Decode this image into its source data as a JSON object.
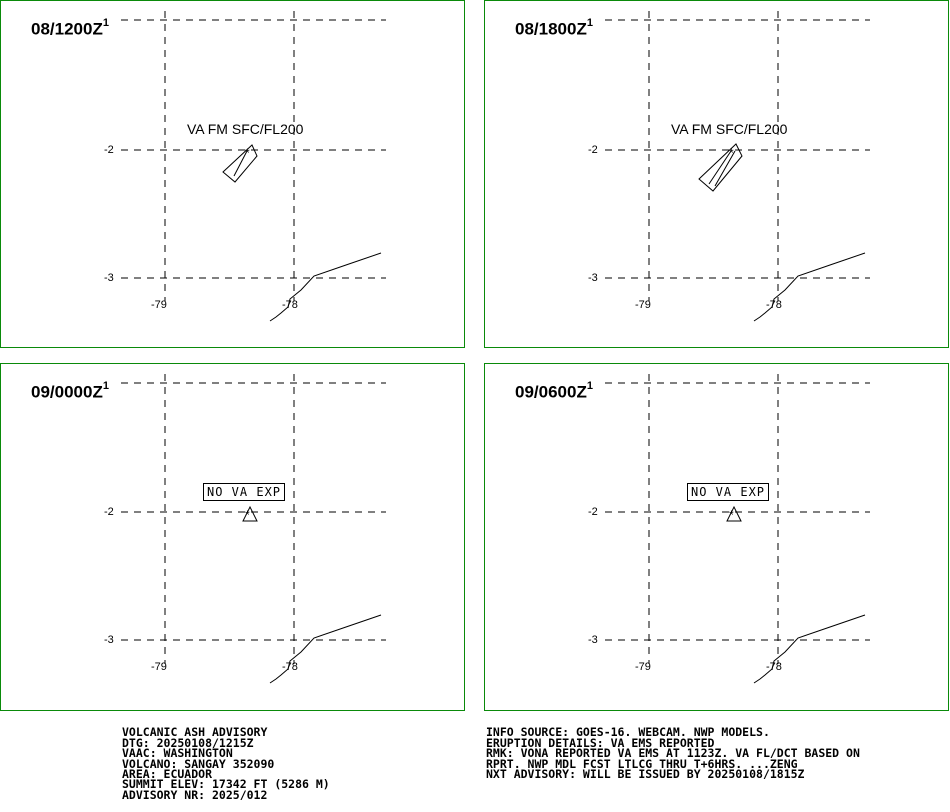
{
  "panels": [
    {
      "time": "08/1200Z",
      "sup": "1",
      "label": "VA FM SFC/FL200",
      "label_type": "plain"
    },
    {
      "time": "08/1800Z",
      "sup": "1",
      "label": "VA FM SFC/FL200",
      "label_type": "plain"
    },
    {
      "time": "09/0000Z",
      "sup": "1",
      "label": "NO VA EXP",
      "label_type": "boxed"
    },
    {
      "time": "09/0600Z",
      "sup": "1",
      "label": "NO VA EXP",
      "label_type": "boxed"
    }
  ],
  "axes": {
    "lat_labels": [
      "-2",
      "-3"
    ],
    "lon_labels": [
      "-79",
      "-78"
    ]
  },
  "advisory_left": [
    "VOLCANIC ASH ADVISORY",
    "DTG: 20250108/1215Z",
    "VAAC: WASHINGTON",
    "VOLCANO: SANGAY 352090",
    "AREA: ECUADOR",
    "SUMMIT ELEV: 17342 FT (5286 M)",
    "ADVISORY NR: 2025/012"
  ],
  "advisory_right": [
    "INFO SOURCE: GOES-16. WEBCAM. NWP MODELS.",
    "ERUPTION DETAILS: VA EMS REPORTED",
    "RMK: VONA REPORTED VA EMS AT 1123Z. VA FL/DCT BASED ON",
    "RPRT. NWP MDL FCST LTLCG THRU T+6HRS. ...ZENG",
    "NXT ADVISORY: WILL BE ISSUED BY 20250108/1815Z"
  ],
  "colors": {
    "panel_border": "#0a8a0a"
  }
}
